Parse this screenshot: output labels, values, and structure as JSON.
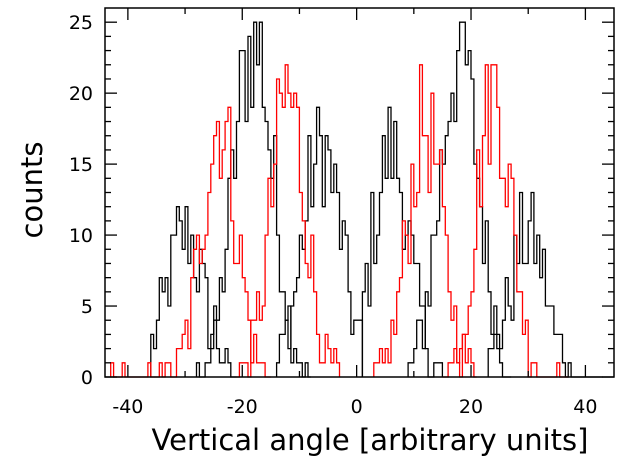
{
  "chart_data": {
    "type": "histogram",
    "xlabel": "Vertical angle [arbitrary units]",
    "ylabel": "counts",
    "xlim": [
      -44,
      45
    ],
    "ylim": [
      0,
      26
    ],
    "x_ticks": [
      -40,
      -20,
      0,
      20,
      40
    ],
    "y_ticks": [
      0,
      5,
      10,
      15,
      20,
      25
    ],
    "grid": false,
    "legend": "none",
    "series": [
      {
        "color": "#000000",
        "center": -30,
        "peak": 10,
        "sigma": 3.2,
        "range": [
          -36,
          -21
        ]
      },
      {
        "color": "#000000",
        "center": -18,
        "peak": 24,
        "sigma": 3.4,
        "range": [
          -28,
          -8
        ]
      },
      {
        "color": "#000000",
        "center": -6,
        "peak": 16,
        "sigma": 3.4,
        "range": [
          -14,
          1
        ]
      },
      {
        "color": "#000000",
        "center": 6,
        "peak": 16,
        "sigma": 3.2,
        "range": [
          1,
          15
        ]
      },
      {
        "color": "#000000",
        "center": 18,
        "peak": 23,
        "sigma": 3.4,
        "range": [
          9,
          27
        ]
      },
      {
        "color": "#000000",
        "center": 30,
        "peak": 10,
        "sigma": 3.2,
        "range": [
          23,
          43
        ]
      },
      {
        "color": "#ff0000",
        "center": -24,
        "peak": 18,
        "sigma": 3.0,
        "range": [
          -43,
          -15
        ]
      },
      {
        "color": "#ff0000",
        "center": -12,
        "peak": 20,
        "sigma": 3.0,
        "range": [
          -21,
          -3
        ]
      },
      {
        "color": "#ff0000",
        "center": 12,
        "peak": 18,
        "sigma": 3.0,
        "range": [
          3,
          21
        ]
      },
      {
        "color": "#ff0000",
        "center": 24,
        "peak": 20,
        "sigma": 3.0,
        "range": [
          15,
          37
        ]
      }
    ]
  }
}
